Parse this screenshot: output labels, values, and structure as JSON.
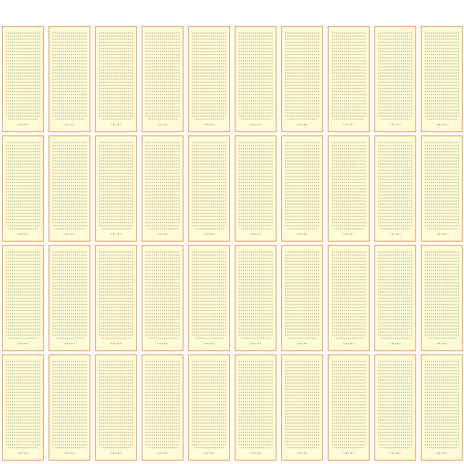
{
  "sheets": {
    "rows": 4,
    "columns": 10,
    "border_color": "#f08a45",
    "fill_color": "#fffbd6",
    "dot_color": "#8a8a7a"
  }
}
